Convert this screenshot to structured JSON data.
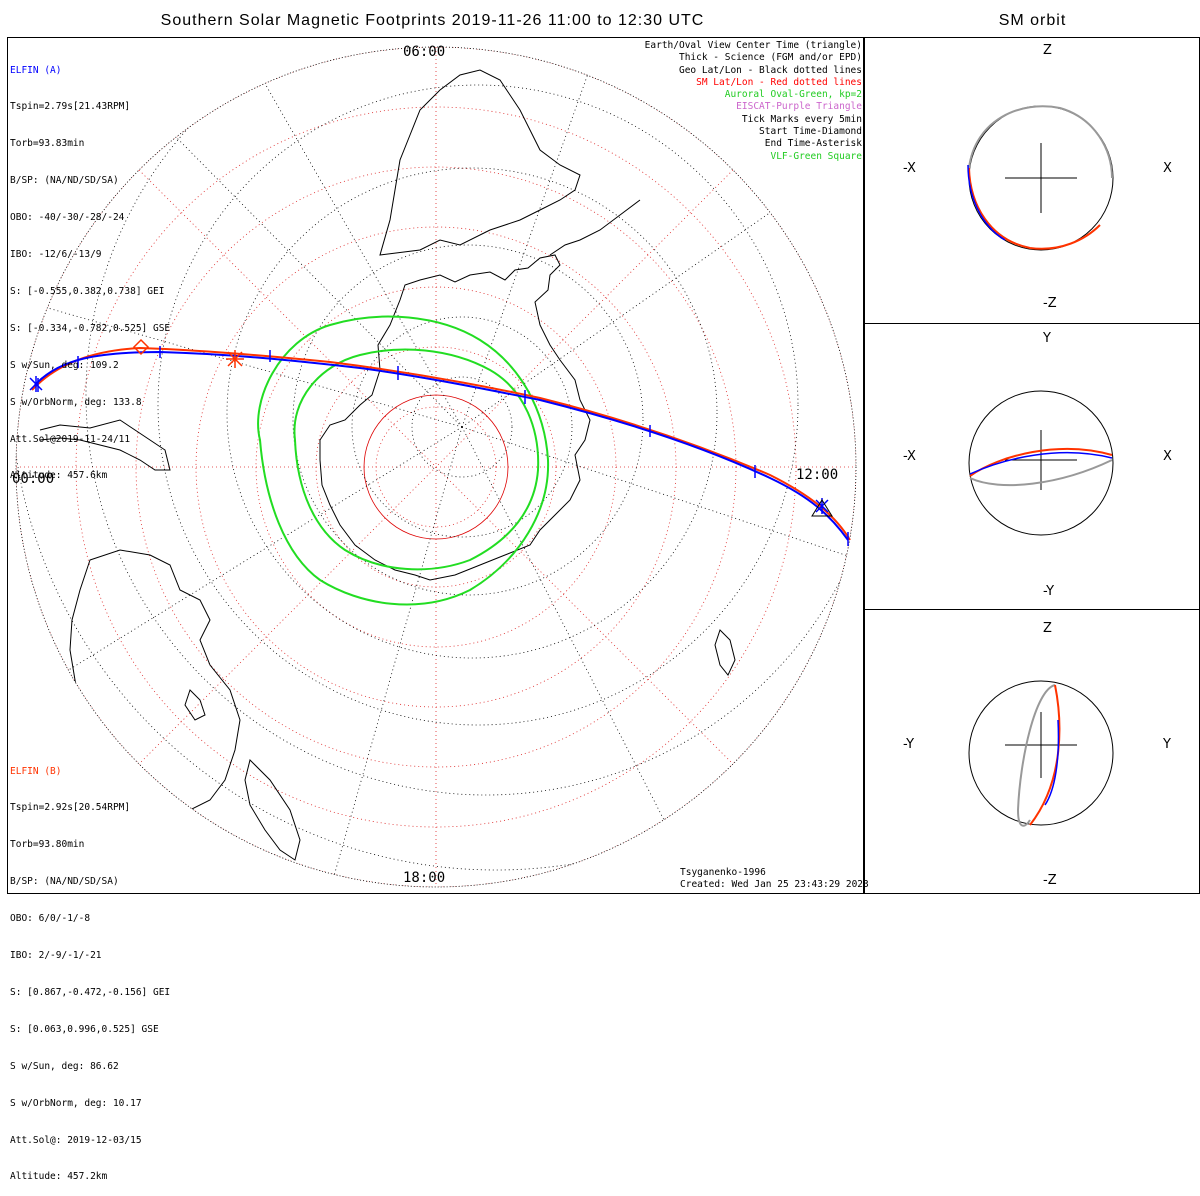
{
  "title": "Southern Solar Magnetic Footprints 2019-11-26 11:00 to 12:30 UTC",
  "orbit_title": "SM orbit",
  "colors": {
    "elfin_a": "#0000ff",
    "elfin_b": "#ff3300",
    "auroral": "#22dd22",
    "eiscat": "#cc66cc",
    "sm_grid": "#dd0000",
    "geo_grid": "#000000"
  },
  "clock_labels": {
    "top": "06:00",
    "left": "00:00",
    "right": "12:00",
    "bottom": "18:00"
  },
  "elfin_a": {
    "name": "ELFIN (A)",
    "lines": [
      "Tspin=2.79s[21.43RPM]",
      "Torb=93.83min",
      "B/SP: (NA/ND/SD/SA)",
      "OBO: -40/-30/-28/-24",
      "IBO: -12/6/-13/9",
      "S: [-0.555,0.382,0.738] GEI",
      "S: [-0.334,-0.782,0.525] GSE",
      "S w/Sun, deg: 109.2",
      "S w/OrbNorm, deg: 133.8",
      "Att.Sol@2019-11-24/11",
      "Altitude: 457.6km"
    ]
  },
  "elfin_b": {
    "name": "ELFIN (B)",
    "lines": [
      "Tspin=2.92s[20.54RPM]",
      "Torb=93.80min",
      "B/SP: (NA/ND/SD/SA)",
      "OBO: 6/0/-1/-8",
      "IBO: 2/-9/-1/-21",
      "S: [0.867,-0.472,-0.156] GEI",
      "S: [0.063,0.996,0.525] GSE",
      "S w/Sun, deg: 86.62",
      "S w/OrbNorm, deg: 10.17",
      "Att.Sol@: 2019-12-03/15",
      "Altitude: 457.2km"
    ]
  },
  "legend": [
    {
      "text": "Earth/Oval View Center Time (triangle)",
      "color": "#000000"
    },
    {
      "text": "Thick - Science (FGM and/or EPD)",
      "color": "#000000"
    },
    {
      "text": "Geo Lat/Lon - Black dotted lines",
      "color": "#000000"
    },
    {
      "text": "SM Lat/Lon - Red dotted lines",
      "color": "#ff0000"
    },
    {
      "text": "Auroral Oval-Green, kp=2",
      "color": "#22cc22"
    },
    {
      "text": "EISCAT-Purple Triangle",
      "color": "#cc66cc"
    },
    {
      "text": "Tick Marks every 5min",
      "color": "#000000"
    },
    {
      "text": "Start Time-Diamond",
      "color": "#000000"
    },
    {
      "text": "End Time-Asterisk",
      "color": "#000000"
    },
    {
      "text": "VLF-Green Square",
      "color": "#22cc22"
    }
  ],
  "credits": {
    "model": "Tsyganenko-1996",
    "created": "Created: Wed Jan 25 23:43:29 2023"
  },
  "panels": [
    {
      "top": "Z",
      "bottom": "-Z",
      "left": "-X",
      "right": "X"
    },
    {
      "top": "Y",
      "bottom": "-Y",
      "left": "-X",
      "right": "X"
    },
    {
      "top": "Z",
      "bottom": "-Z",
      "left": "-Y",
      "right": "Y"
    }
  ]
}
